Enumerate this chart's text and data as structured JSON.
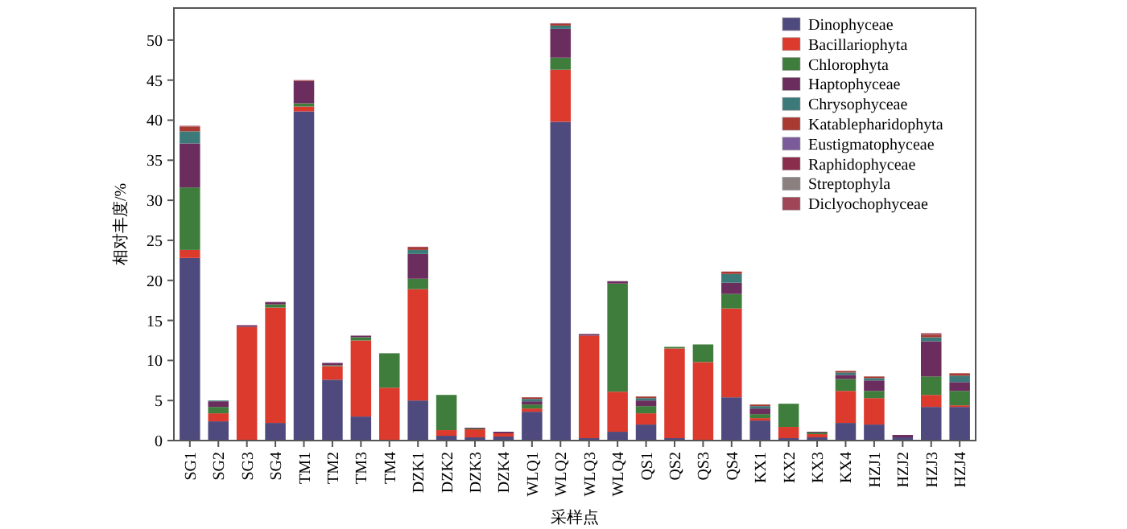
{
  "chart_data": {
    "type": "bar",
    "stacked": true,
    "xlabel": "采样点",
    "ylabel": "相对丰度/%",
    "ylim": [
      0,
      54
    ],
    "yticks": [
      0,
      5,
      10,
      15,
      20,
      25,
      30,
      35,
      40,
      45,
      50
    ],
    "legend": "top right",
    "grid": false,
    "categories": [
      "SG1",
      "SG2",
      "SG3",
      "SG4",
      "TM1",
      "TM2",
      "TM3",
      "TM4",
      "DZK1",
      "DZK2",
      "DZK3",
      "DZK4",
      "WLQ1",
      "WLQ2",
      "WLQ3",
      "WLQ4",
      "QS1",
      "QS2",
      "QS3",
      "QS4",
      "KX1",
      "KX2",
      "KX3",
      "KX4",
      "HZJ1",
      "HZJ2",
      "HZJ3",
      "HZJ4"
    ],
    "series": [
      {
        "name": "Dinophyceae",
        "color": "#4e4a7e",
        "values": [
          22.8,
          2.4,
          0.1,
          2.2,
          41.1,
          7.6,
          3.0,
          0.1,
          5.0,
          0.6,
          0.4,
          0.5,
          3.6,
          39.8,
          0.3,
          1.1,
          2.0,
          0.3,
          0.1,
          5.4,
          2.5,
          0.3,
          0.4,
          2.2,
          2.0,
          0.4,
          4.2,
          4.2
        ]
      },
      {
        "name": "Bacillariophyta",
        "color": "#dc3a2c",
        "values": [
          1.0,
          1.0,
          14.1,
          14.4,
          0.6,
          1.7,
          9.5,
          6.5,
          13.9,
          0.7,
          1.0,
          0.4,
          0.4,
          6.5,
          12.8,
          5.0,
          1.4,
          11.2,
          9.7,
          11.1,
          0.3,
          1.4,
          0.4,
          4.0,
          3.3,
          0,
          1.5,
          0.2
        ]
      },
      {
        "name": "Chlorophyta",
        "color": "#3f7d3c",
        "values": [
          7.8,
          0.8,
          0,
          0.4,
          0.4,
          0.1,
          0.4,
          4.3,
          1.3,
          4.4,
          0.1,
          0,
          0.5,
          1.5,
          0,
          13.5,
          0.9,
          0.2,
          2.2,
          1.8,
          0.5,
          2.9,
          0.2,
          1.5,
          0.9,
          0,
          2.3,
          1.8
        ]
      },
      {
        "name": "Haptophyceae",
        "color": "#6b2c5e",
        "values": [
          5.5,
          0.7,
          0.2,
          0.3,
          2.8,
          0.3,
          0.2,
          0,
          3.1,
          0,
          0.1,
          0.2,
          0.4,
          3.6,
          0.2,
          0.3,
          0.7,
          0,
          0,
          1.4,
          0.7,
          0,
          0.1,
          0.5,
          1.3,
          0.3,
          4.4,
          1.1
        ]
      },
      {
        "name": "Chrysophyceae",
        "color": "#3c7a7a",
        "values": [
          1.5,
          0.1,
          0,
          0,
          0,
          0,
          0,
          0,
          0.5,
          0,
          0,
          0,
          0.3,
          0.4,
          0,
          0,
          0.3,
          0,
          0,
          1.1,
          0.3,
          0,
          0,
          0.3,
          0.3,
          0,
          0.5,
          0.8
        ]
      },
      {
        "name": "Katablepharidophyta",
        "color": "#a83a32",
        "values": [
          0.6,
          0,
          0,
          0,
          0.1,
          0,
          0,
          0,
          0.3,
          0,
          0,
          0,
          0.2,
          0.2,
          0,
          0,
          0.2,
          0,
          0,
          0.3,
          0.2,
          0,
          0,
          0.2,
          0.2,
          0,
          0.3,
          0.3
        ]
      },
      {
        "name": "Eustigmatophyceae",
        "color": "#7b5a9a",
        "values": [
          0,
          0,
          0,
          0,
          0,
          0,
          0,
          0,
          0,
          0,
          0,
          0,
          0,
          0,
          0,
          0,
          0,
          0,
          0,
          0,
          0,
          0,
          0,
          0,
          0,
          0,
          0,
          0
        ]
      },
      {
        "name": "Raphidophyceae",
        "color": "#8a2c4c",
        "values": [
          0,
          0,
          0,
          0,
          0,
          0,
          0,
          0,
          0,
          0,
          0,
          0,
          0,
          0,
          0,
          0,
          0,
          0,
          0,
          0,
          0,
          0,
          0,
          0,
          0,
          0,
          0,
          0
        ]
      },
      {
        "name": "Streptophyla",
        "color": "#8a8080",
        "values": [
          0,
          0,
          0,
          0,
          0,
          0,
          0,
          0,
          0,
          0,
          0,
          0,
          0,
          0,
          0,
          0,
          0,
          0,
          0,
          0,
          0,
          0,
          0,
          0,
          0,
          0,
          0,
          0
        ]
      },
      {
        "name": "Diclyochophyceae",
        "color": "#a04458",
        "values": [
          0.1,
          0,
          0,
          0,
          0,
          0,
          0,
          0,
          0.1,
          0,
          0,
          0,
          0,
          0.1,
          0,
          0,
          0,
          0,
          0,
          0,
          0,
          0,
          0,
          0,
          0,
          0,
          0.2,
          0
        ]
      }
    ]
  }
}
